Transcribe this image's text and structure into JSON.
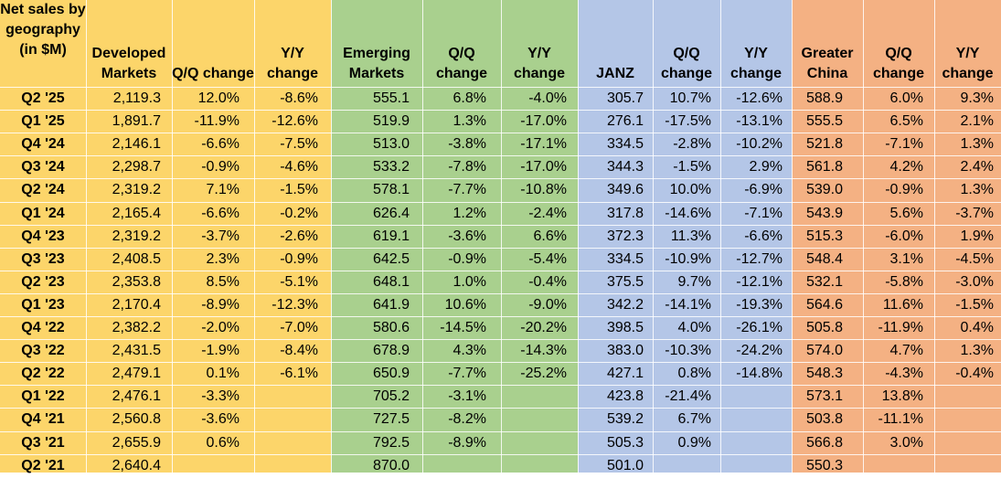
{
  "chart_data": {
    "type": "table",
    "title": "Net sales by geography (in $M)",
    "columns": [
      {
        "key": "label",
        "header": "Net sales by geography (in $M)"
      },
      {
        "key": "dm",
        "header": "Developed Markets"
      },
      {
        "key": "dm_qq",
        "header": "Q/Q change"
      },
      {
        "key": "dm_yy",
        "header": "Y/Y change"
      },
      {
        "key": "em",
        "header": "Emerging Markets"
      },
      {
        "key": "em_qq",
        "header": "Q/Q change"
      },
      {
        "key": "em_yy",
        "header": "Y/Y change"
      },
      {
        "key": "janz",
        "header": "JANZ"
      },
      {
        "key": "janz_qq",
        "header": "Q/Q change"
      },
      {
        "key": "janz_yy",
        "header": "Y/Y change"
      },
      {
        "key": "gc",
        "header": "Greater China"
      },
      {
        "key": "gc_qq",
        "header": "Q/Q change"
      },
      {
        "key": "gc_yy",
        "header": "Y/Y change"
      }
    ],
    "group_colors": {
      "label": "#fcd56a",
      "developed": "#fcd56a",
      "emerging": "#a9d08e",
      "janz": "#b4c6e7",
      "china": "#f4b183"
    },
    "rows": [
      [
        "Q2 '25",
        "2,119.3",
        "12.0%",
        "-8.6%",
        "555.1",
        "6.8%",
        "-4.0%",
        "305.7",
        "10.7%",
        "-12.6%",
        "588.9",
        "6.0%",
        "9.3%"
      ],
      [
        "Q1 '25",
        "1,891.7",
        "-11.9%",
        "-12.6%",
        "519.9",
        "1.3%",
        "-17.0%",
        "276.1",
        "-17.5%",
        "-13.1%",
        "555.5",
        "6.5%",
        "2.1%"
      ],
      [
        "Q4 '24",
        "2,146.1",
        "-6.6%",
        "-7.5%",
        "513.0",
        "-3.8%",
        "-17.1%",
        "334.5",
        "-2.8%",
        "-10.2%",
        "521.8",
        "-7.1%",
        "1.3%"
      ],
      [
        "Q3 '24",
        "2,298.7",
        "-0.9%",
        "-4.6%",
        "533.2",
        "-7.8%",
        "-17.0%",
        "344.3",
        "-1.5%",
        "2.9%",
        "561.8",
        "4.2%",
        "2.4%"
      ],
      [
        "Q2 '24",
        "2,319.2",
        "7.1%",
        "-1.5%",
        "578.1",
        "-7.7%",
        "-10.8%",
        "349.6",
        "10.0%",
        "-6.9%",
        "539.0",
        "-0.9%",
        "1.3%"
      ],
      [
        "Q1 '24",
        "2,165.4",
        "-6.6%",
        "-0.2%",
        "626.4",
        "1.2%",
        "-2.4%",
        "317.8",
        "-14.6%",
        "-7.1%",
        "543.9",
        "5.6%",
        "-3.7%"
      ],
      [
        "Q4 '23",
        "2,319.2",
        "-3.7%",
        "-2.6%",
        "619.1",
        "-3.6%",
        "6.6%",
        "372.3",
        "11.3%",
        "-6.6%",
        "515.3",
        "-6.0%",
        "1.9%"
      ],
      [
        "Q3 '23",
        "2,408.5",
        "2.3%",
        "-0.9%",
        "642.5",
        "-0.9%",
        "-5.4%",
        "334.5",
        "-10.9%",
        "-12.7%",
        "548.4",
        "3.1%",
        "-4.5%"
      ],
      [
        "Q2 '23",
        "2,353.8",
        "8.5%",
        "-5.1%",
        "648.1",
        "1.0%",
        "-0.4%",
        "375.5",
        "9.7%",
        "-12.1%",
        "532.1",
        "-5.8%",
        "-3.0%"
      ],
      [
        "Q1 '23",
        "2,170.4",
        "-8.9%",
        "-12.3%",
        "641.9",
        "10.6%",
        "-9.0%",
        "342.2",
        "-14.1%",
        "-19.3%",
        "564.6",
        "11.6%",
        "-1.5%"
      ],
      [
        "Q4 '22",
        "2,382.2",
        "-2.0%",
        "-7.0%",
        "580.6",
        "-14.5%",
        "-20.2%",
        "398.5",
        "4.0%",
        "-26.1%",
        "505.8",
        "-11.9%",
        "0.4%"
      ],
      [
        "Q3 '22",
        "2,431.5",
        "-1.9%",
        "-8.4%",
        "678.9",
        "4.3%",
        "-14.3%",
        "383.0",
        "-10.3%",
        "-24.2%",
        "574.0",
        "4.7%",
        "1.3%"
      ],
      [
        "Q2 '22",
        "2,479.1",
        "0.1%",
        "-6.1%",
        "650.9",
        "-7.7%",
        "-25.2%",
        "427.1",
        "0.8%",
        "-14.8%",
        "548.3",
        "-4.3%",
        "-0.4%"
      ],
      [
        "Q1 '22",
        "2,476.1",
        "-3.3%",
        "",
        "705.2",
        "-3.1%",
        "",
        "423.8",
        "-21.4%",
        "",
        "573.1",
        "13.8%",
        ""
      ],
      [
        "Q4 '21",
        "2,560.8",
        "-3.6%",
        "",
        "727.5",
        "-8.2%",
        "",
        "539.2",
        "6.7%",
        "",
        "503.8",
        "-11.1%",
        ""
      ],
      [
        "Q3 '21",
        "2,655.9",
        "0.6%",
        "",
        "792.5",
        "-8.9%",
        "",
        "505.3",
        "0.9%",
        "",
        "566.8",
        "3.0%",
        ""
      ],
      [
        "Q2 '21",
        "2,640.4",
        "",
        "",
        "870.0",
        "",
        "",
        "501.0",
        "",
        "",
        "550.3",
        "",
        ""
      ]
    ]
  }
}
